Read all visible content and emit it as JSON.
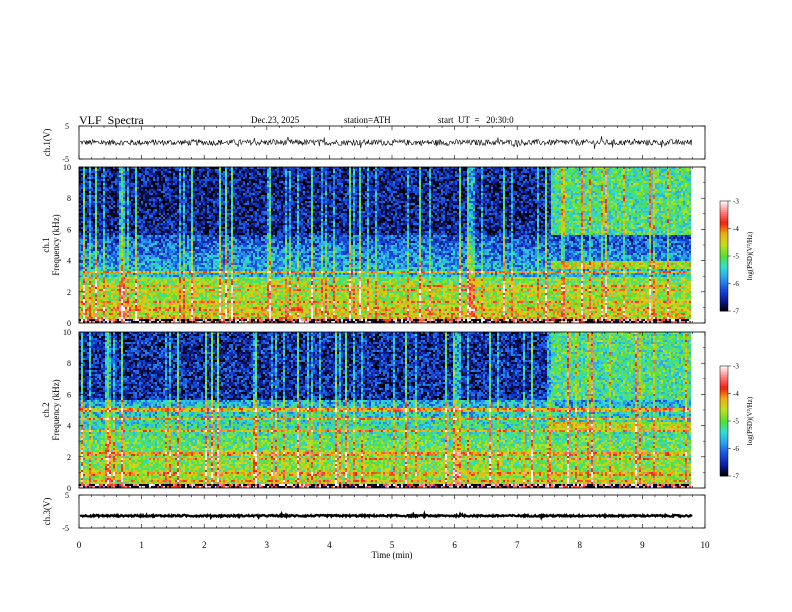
{
  "header": {
    "title": "VLF  Spectra",
    "date": "Dec.23, 2025",
    "station": "station=ATH",
    "start": "start  UT  =   20:30:0"
  },
  "colors": {
    "trace": "#000000",
    "colormap": [
      "#000000",
      "#0a1e9e",
      "#1a4fe0",
      "#2aa0f0",
      "#2fe0d0",
      "#55e030",
      "#c0e020",
      "#f0b010",
      "#f02010",
      "#ff8080",
      "#ffffff"
    ]
  },
  "chart_data": [
    {
      "id": "ch1-waveform",
      "type": "line",
      "ylabel": "ch.1(V)",
      "ylim": [
        -5,
        5
      ],
      "yticks": [
        "5",
        "-5"
      ],
      "xlim": [
        0,
        10
      ],
      "level": 0,
      "noise_amplitude": 0.9,
      "color": "#000000"
    },
    {
      "id": "ch1-spectrogram",
      "type": "heatmap",
      "channel_label": "ch.1",
      "ylabel": "Frequency (kHz)",
      "ylim": [
        0,
        10
      ],
      "yticks": [
        "0",
        "2",
        "4",
        "6",
        "8",
        "10"
      ],
      "xlim": [
        0,
        10
      ],
      "data_end_min": 9.8,
      "colorbar": {
        "label": "log(PSD)(V²/Hz)",
        "range": [
          -7,
          -3
        ],
        "ticks": [
          "-3",
          "-4",
          "-5",
          "-6",
          "-7"
        ]
      },
      "event_min": 7.55,
      "band_khz": [
        3.5,
        4.0
      ],
      "levels": {
        "low_khz": -4.5,
        "mid_khz": -5.6,
        "quiet_upper": -6.6,
        "active_upper": -5.2
      },
      "lines_khz": [
        0.3,
        0.6,
        0.9,
        1.4,
        2.1,
        2.4,
        3.3
      ]
    },
    {
      "id": "ch2-spectrogram",
      "type": "heatmap",
      "channel_label": "ch.2",
      "ylabel": "Frequency (kHz)",
      "ylim": [
        0,
        10
      ],
      "yticks": [
        "0",
        "2",
        "4",
        "6",
        "8",
        "10"
      ],
      "xlim": [
        0,
        10
      ],
      "data_end_min": 9.8,
      "colorbar": {
        "label": "log(PSD)(V²/Hz)",
        "range": [
          -7,
          -3
        ],
        "ticks": [
          "-3",
          "-4",
          "-5",
          "-6",
          "-7"
        ]
      },
      "event_min": 7.55,
      "band_khz": [
        3.6,
        4.2
      ],
      "levels": {
        "low_khz": -4.7,
        "mid_khz": -5.1,
        "quiet_upper": -6.5,
        "active_upper": -5.2
      },
      "lines_khz": [
        0.5,
        0.9,
        1.9,
        2.1,
        2.3,
        3.6,
        4.4,
        5.0
      ]
    },
    {
      "id": "ch3-waveform",
      "type": "line",
      "ylabel": "ch.3(V)",
      "ylim": [
        -5,
        5
      ],
      "yticks": [
        "5",
        "-5"
      ],
      "xlim": [
        0,
        10
      ],
      "xlabel": "Time  (min)",
      "xticks": [
        "0",
        "1",
        "2",
        "3",
        "4",
        "5",
        "6",
        "7",
        "8",
        "9",
        "10"
      ],
      "level": -1.3,
      "noise_amplitude": 0.25,
      "color": "#000000"
    }
  ]
}
